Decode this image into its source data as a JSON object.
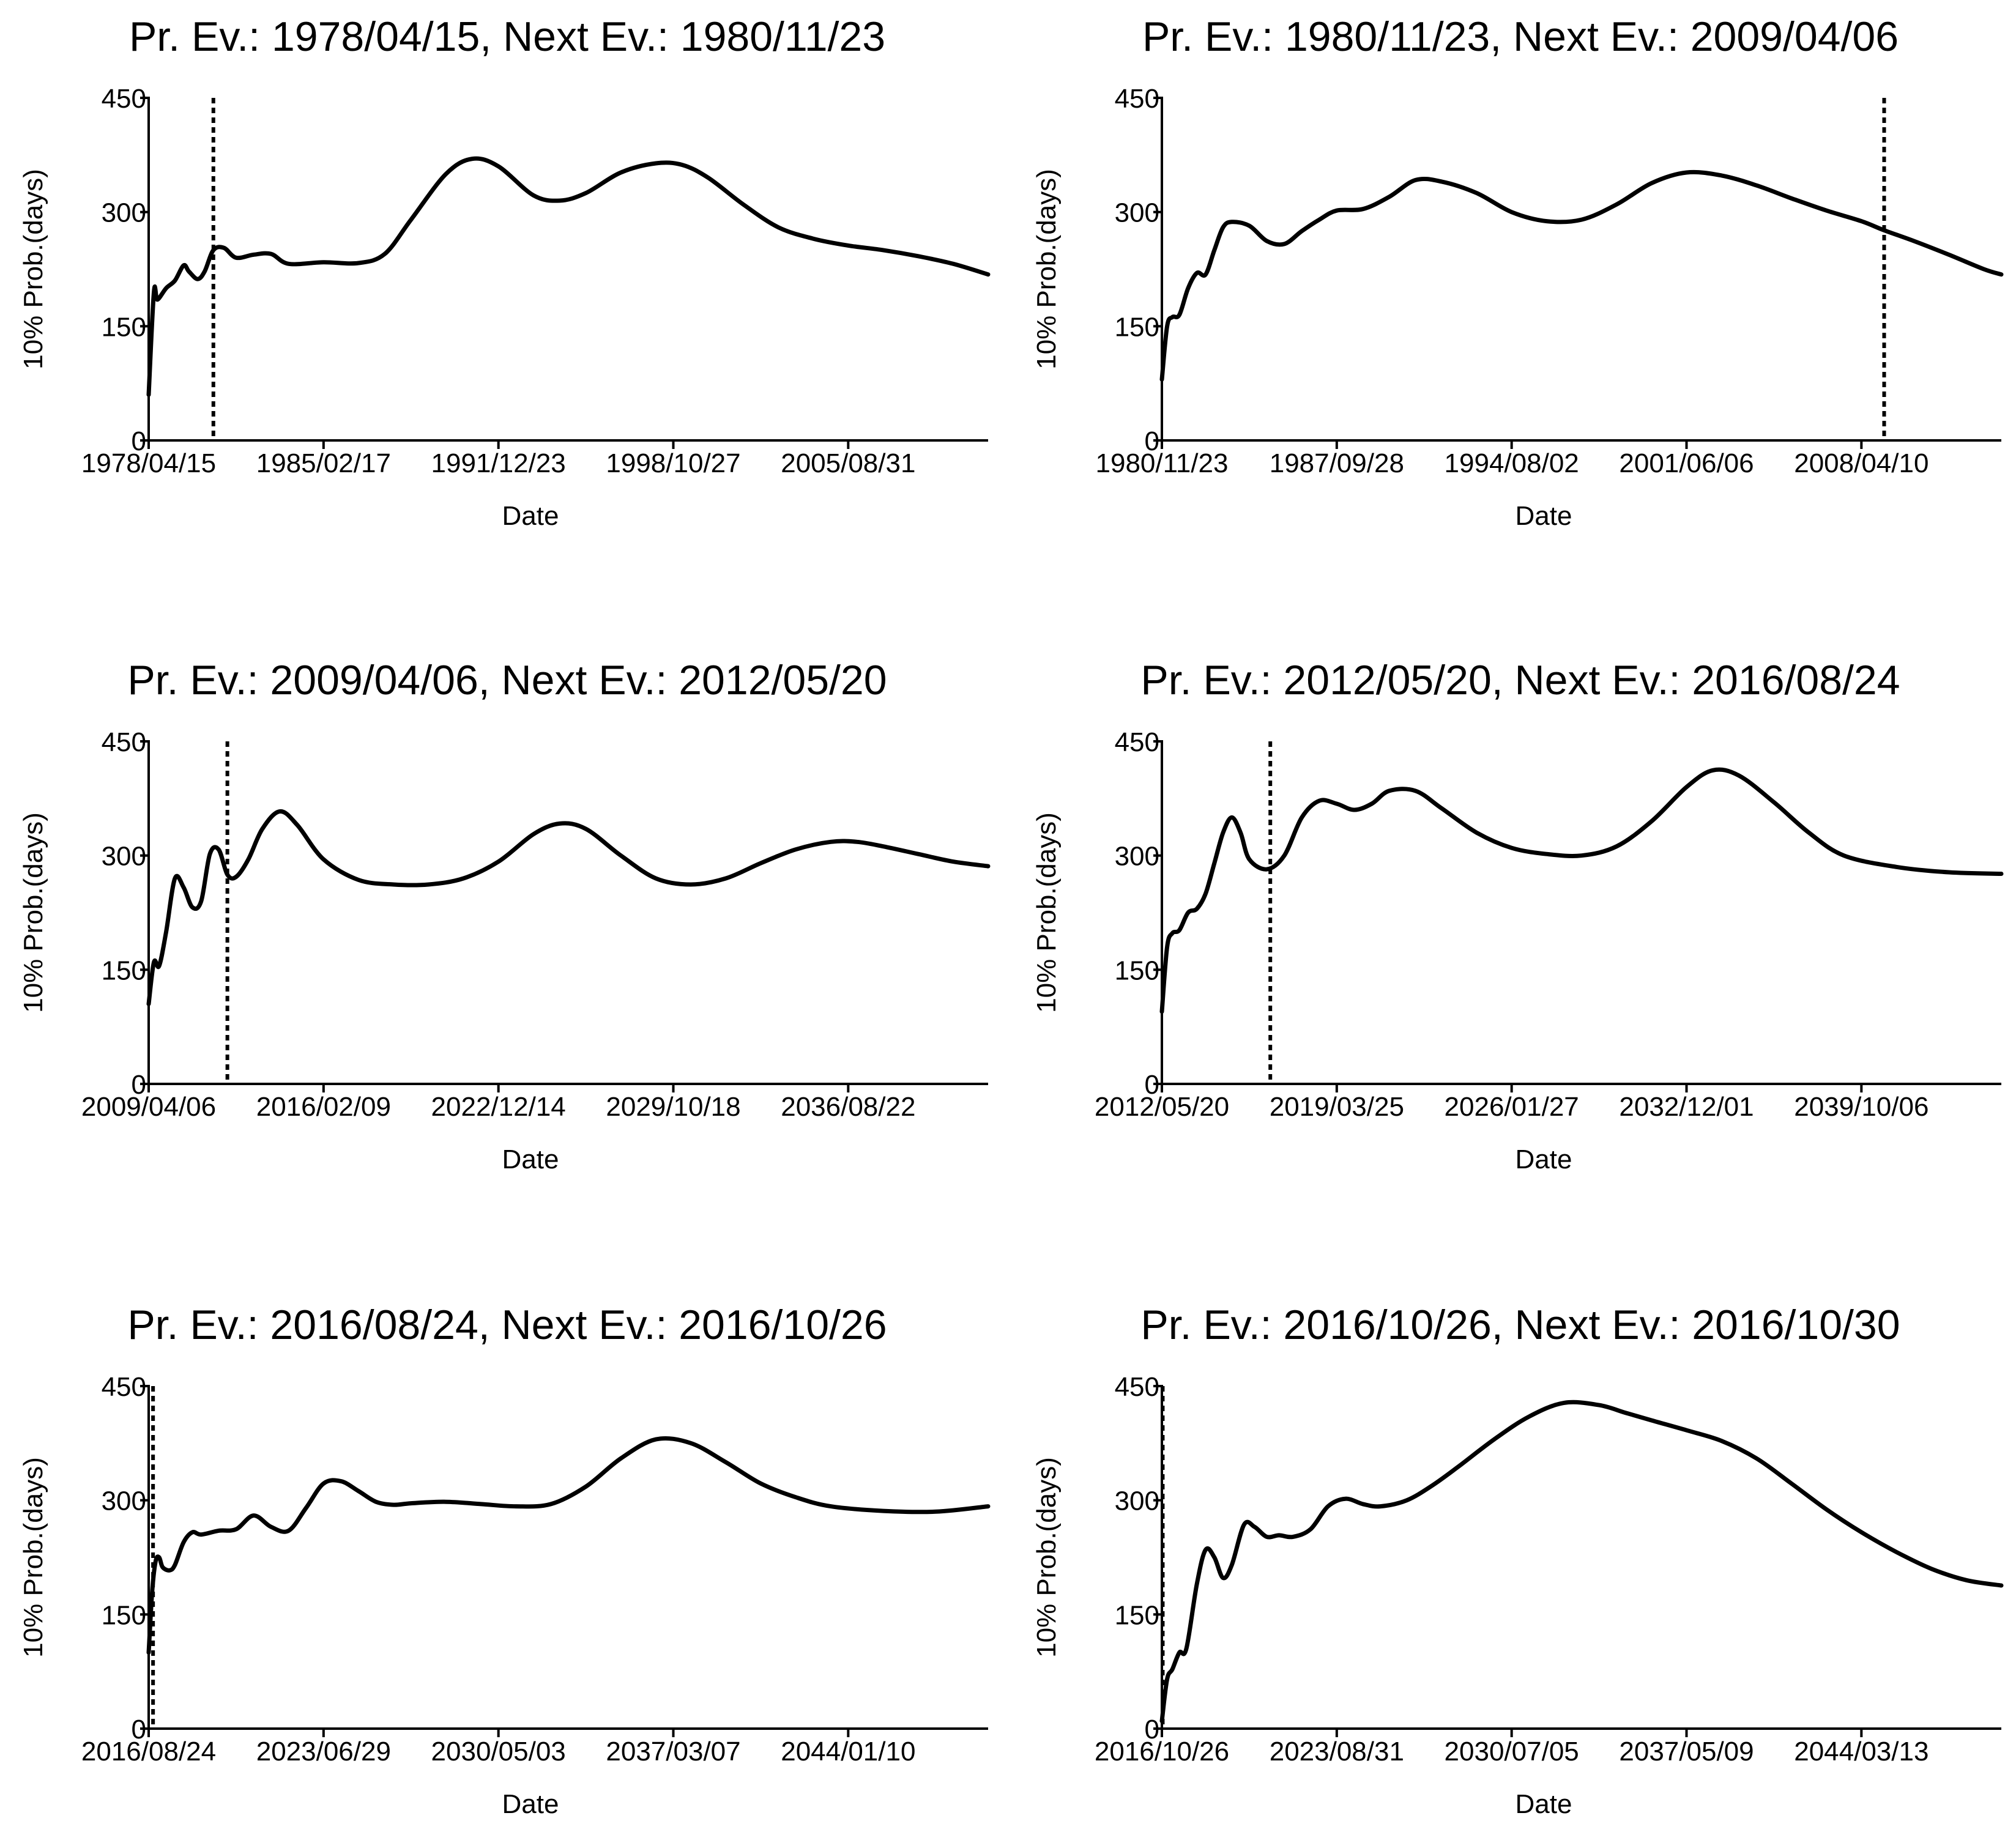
{
  "chart_data": [
    {
      "type": "line",
      "title": "Pr. Ev.: 1978/04/15, Next Ev.: 1980/11/23",
      "xlabel": "Date",
      "ylabel": "10% Prob.(days)",
      "ylim": [
        0,
        450
      ],
      "yticks": [
        0,
        150,
        300,
        450
      ],
      "xlim": [
        0,
        48
      ],
      "xticks": [
        {
          "x": 0,
          "label": "1978/04/15"
        },
        {
          "x": 10,
          "label": "1985/02/17"
        },
        {
          "x": 20,
          "label": "1991/12/23"
        },
        {
          "x": 30,
          "label": "1998/10/27"
        },
        {
          "x": 40,
          "label": "2005/08/31"
        }
      ],
      "event_x": 3.7,
      "series": [
        {
          "name": "10% Prob.",
          "x": [
            0,
            0.3,
            0.5,
            1,
            1.5,
            2,
            2.3,
            2.8,
            3.2,
            3.7,
            4.3,
            5,
            6,
            7,
            8,
            10,
            12,
            13.5,
            15,
            17,
            18.5,
            20,
            22,
            23.5,
            25,
            27,
            29,
            30.5,
            32,
            34,
            36,
            38,
            40,
            42,
            44,
            46,
            48
          ],
          "y": [
            60,
            195,
            185,
            200,
            210,
            230,
            222,
            212,
            222,
            250,
            253,
            240,
            244,
            245,
            232,
            234,
            233,
            245,
            290,
            350,
            370,
            360,
            322,
            315,
            325,
            352,
            364,
            362,
            345,
            310,
            280,
            265,
            256,
            250,
            242,
            232,
            218
          ]
        }
      ]
    },
    {
      "type": "line",
      "title": "Pr. Ev.: 1980/11/23, Next Ev.: 2009/04/06",
      "xlabel": "Date",
      "ylabel": "10% Prob.(days)",
      "ylim": [
        0,
        450
      ],
      "yticks": [
        0,
        150,
        300,
        450
      ],
      "xlim": [
        0,
        48
      ],
      "xticks": [
        {
          "x": 0,
          "label": "1980/11/23"
        },
        {
          "x": 10,
          "label": "1987/09/28"
        },
        {
          "x": 20,
          "label": "1994/08/02"
        },
        {
          "x": 30,
          "label": "2001/06/06"
        },
        {
          "x": 40,
          "label": "2008/04/10"
        }
      ],
      "event_x": 41.3,
      "series": [
        {
          "name": "10% Prob.",
          "x": [
            0,
            0.3,
            0.6,
            1,
            1.5,
            2,
            2.5,
            3,
            3.5,
            4,
            5,
            6,
            7,
            8,
            9,
            10,
            11.5,
            13,
            14.5,
            16,
            18,
            20,
            22,
            24,
            26,
            28,
            30,
            32,
            34,
            36,
            38,
            40,
            41.3,
            43,
            45,
            47,
            48
          ],
          "y": [
            80,
            150,
            162,
            165,
            200,
            220,
            218,
            250,
            280,
            287,
            282,
            262,
            258,
            275,
            290,
            302,
            304,
            320,
            342,
            340,
            325,
            300,
            288,
            290,
            310,
            338,
            352,
            348,
            335,
            318,
            302,
            288,
            276,
            262,
            244,
            225,
            218
          ]
        }
      ]
    },
    {
      "type": "line",
      "title": "Pr. Ev.: 2009/04/06, Next Ev.: 2012/05/20",
      "xlabel": "Date",
      "ylabel": "10% Prob.(days)",
      "ylim": [
        0,
        450
      ],
      "yticks": [
        0,
        150,
        300,
        450
      ],
      "xlim": [
        0,
        48
      ],
      "xticks": [
        {
          "x": 0,
          "label": "2009/04/06"
        },
        {
          "x": 10,
          "label": "2016/02/09"
        },
        {
          "x": 20,
          "label": "2022/12/14"
        },
        {
          "x": 30,
          "label": "2029/10/18"
        },
        {
          "x": 40,
          "label": "2036/08/22"
        }
      ],
      "event_x": 4.5,
      "series": [
        {
          "name": "10% Prob.",
          "x": [
            0,
            0.3,
            0.6,
            1,
            1.5,
            2,
            2.5,
            3,
            3.5,
            4,
            4.5,
            5,
            5.7,
            6.5,
            7.5,
            8.5,
            10,
            12,
            14,
            16,
            18,
            20,
            22,
            23.5,
            25,
            27,
            29,
            31,
            33,
            35,
            37,
            39,
            40.5,
            42,
            44,
            46,
            48
          ],
          "y": [
            105,
            160,
            155,
            200,
            270,
            258,
            232,
            240,
            302,
            308,
            275,
            272,
            295,
            335,
            358,
            340,
            295,
            268,
            262,
            262,
            270,
            292,
            328,
            342,
            335,
            300,
            270,
            262,
            270,
            290,
            308,
            318,
            318,
            312,
            302,
            292,
            286
          ]
        }
      ]
    },
    {
      "type": "line",
      "title": "Pr. Ev.: 2012/05/20, Next Ev.: 2016/08/24",
      "xlabel": "Date",
      "ylabel": "10% Prob.(days)",
      "ylim": [
        0,
        450
      ],
      "yticks": [
        0,
        150,
        300,
        450
      ],
      "xlim": [
        0,
        48
      ],
      "xticks": [
        {
          "x": 0,
          "label": "2012/05/20"
        },
        {
          "x": 10,
          "label": "2019/03/25"
        },
        {
          "x": 20,
          "label": "2026/01/27"
        },
        {
          "x": 30,
          "label": "2032/12/01"
        },
        {
          "x": 40,
          "label": "2039/10/06"
        }
      ],
      "event_x": 6.2,
      "series": [
        {
          "name": "10% Prob.",
          "x": [
            0,
            0.3,
            0.6,
            1,
            1.5,
            2,
            2.5,
            3,
            3.5,
            4,
            4.5,
            5,
            6,
            7,
            8,
            9,
            10,
            11,
            12,
            13,
            14.5,
            16,
            18,
            20,
            22,
            24,
            26,
            28,
            30,
            31.5,
            33,
            35,
            37,
            39,
            42,
            45,
            48
          ],
          "y": [
            95,
            180,
            198,
            202,
            225,
            230,
            250,
            290,
            330,
            350,
            330,
            295,
            282,
            300,
            350,
            372,
            368,
            360,
            368,
            385,
            385,
            362,
            330,
            310,
            302,
            300,
            312,
            345,
            390,
            412,
            405,
            370,
            330,
            300,
            285,
            278,
            276
          ]
        }
      ]
    },
    {
      "type": "line",
      "title": "Pr. Ev.: 2016/08/24, Next Ev.: 2016/10/26",
      "xlabel": "Date",
      "ylabel": "10% Prob.(days)",
      "ylim": [
        0,
        450
      ],
      "yticks": [
        0,
        150,
        300,
        450
      ],
      "xlim": [
        0,
        48
      ],
      "xticks": [
        {
          "x": 0,
          "label": "2016/08/24"
        },
        {
          "x": 10,
          "label": "2023/06/29"
        },
        {
          "x": 20,
          "label": "2030/05/03"
        },
        {
          "x": 30,
          "label": "2037/03/07"
        },
        {
          "x": 40,
          "label": "2044/01/10"
        }
      ],
      "event_x": 0.25,
      "series": [
        {
          "name": "10% Prob.",
          "x": [
            0,
            0.2,
            0.4,
            0.6,
            0.8,
            1.2,
            1.5,
            2,
            2.5,
            3,
            4,
            5,
            6,
            7,
            8,
            9,
            10,
            11,
            12,
            13,
            14,
            15,
            17,
            19,
            21,
            23,
            25,
            27,
            29,
            31,
            33,
            35,
            37,
            39,
            42,
            45,
            48
          ],
          "y": [
            100,
            180,
            220,
            225,
            212,
            208,
            215,
            245,
            258,
            255,
            260,
            262,
            280,
            265,
            260,
            290,
            322,
            325,
            312,
            298,
            294,
            296,
            298,
            295,
            292,
            295,
            318,
            355,
            380,
            375,
            350,
            322,
            304,
            292,
            286,
            285,
            292
          ]
        }
      ]
    },
    {
      "type": "line",
      "title": "Pr. Ev.: 2016/10/26, Next Ev.: 2016/10/30",
      "xlabel": "Date",
      "ylabel": "10% Prob.(days)",
      "ylim": [
        0,
        450
      ],
      "yticks": [
        0,
        150,
        300,
        450
      ],
      "xlim": [
        0,
        48
      ],
      "xticks": [
        {
          "x": 0,
          "label": "2016/10/26"
        },
        {
          "x": 10,
          "label": "2023/08/31"
        },
        {
          "x": 20,
          "label": "2030/07/05"
        },
        {
          "x": 30,
          "label": "2037/05/09"
        },
        {
          "x": 40,
          "label": "2044/03/13"
        }
      ],
      "event_x": 0.05,
      "series": [
        {
          "name": "10% Prob.",
          "x": [
            0,
            0.3,
            0.6,
            1,
            1.4,
            2,
            2.5,
            3,
            3.5,
            4,
            4.7,
            5.3,
            6,
            6.7,
            7.5,
            8.5,
            9.5,
            10.5,
            11.5,
            12.5,
            14,
            15.5,
            17,
            19,
            21,
            23,
            25,
            26.5,
            28,
            30,
            32,
            34,
            36,
            38,
            40,
            42,
            44,
            46,
            48
          ],
          "y": [
            10,
            65,
            78,
            100,
            105,
            190,
            235,
            225,
            198,
            215,
            268,
            265,
            252,
            254,
            252,
            262,
            292,
            302,
            295,
            292,
            300,
            320,
            345,
            380,
            410,
            428,
            425,
            415,
            405,
            392,
            378,
            355,
            322,
            288,
            258,
            232,
            210,
            195,
            188
          ]
        }
      ]
    }
  ]
}
